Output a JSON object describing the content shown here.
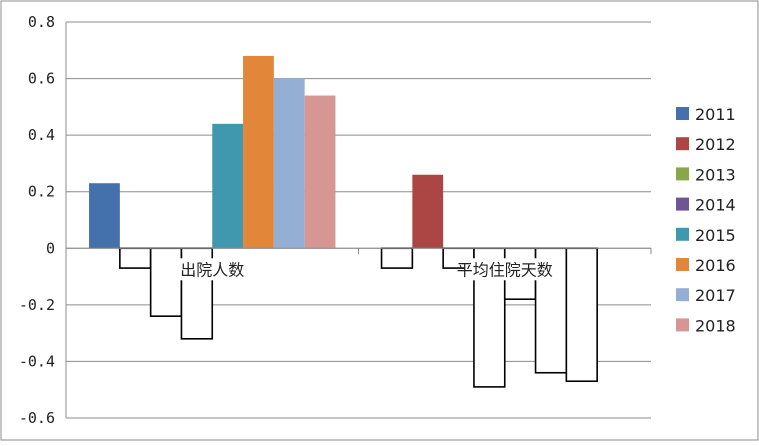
{
  "chart_data": {
    "type": "bar",
    "title": "",
    "xlabel": "",
    "ylabel": "",
    "ylim": [
      -0.6,
      0.8
    ],
    "yticks": [
      0.8,
      0.6,
      0.4,
      0.2,
      0,
      -0.2,
      -0.4,
      -0.6
    ],
    "ytick_labels": [
      "0.8",
      "0.6",
      "0.4",
      "0.2",
      "0",
      "-0.2",
      "-0.4",
      "-0.6"
    ],
    "grid": true,
    "legend_position": "right",
    "categories": [
      "出院人数",
      "平均住院天数"
    ],
    "series": [
      {
        "name": "2011",
        "color": "#4470AC",
        "values": [
          0.23,
          -0.07
        ]
      },
      {
        "name": "2012",
        "color": "#AC4645",
        "values": [
          -0.07,
          0.26
        ]
      },
      {
        "name": "2013",
        "color": "#8AA64A",
        "values": [
          -0.24,
          -0.07
        ]
      },
      {
        "name": "2014",
        "color": "#6E5694",
        "values": [
          -0.32,
          -0.49
        ]
      },
      {
        "name": "2015",
        "color": "#4098AE",
        "values": [
          0.44,
          -0.18
        ]
      },
      {
        "name": "2016",
        "color": "#E2873A",
        "values": [
          0.68,
          -0.44
        ]
      },
      {
        "name": "2017",
        "color": "#94AED4",
        "values": [
          0.6,
          -0.47
        ]
      },
      {
        "name": "2018",
        "color": "#D59694",
        "values": [
          0.54,
          null
        ]
      }
    ]
  }
}
